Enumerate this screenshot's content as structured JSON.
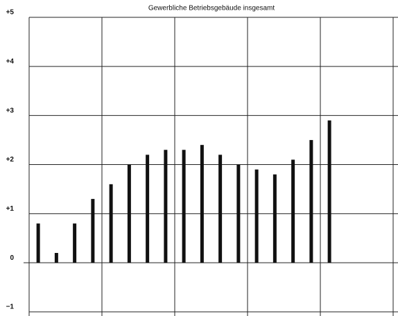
{
  "chart_data": {
    "type": "bar",
    "title": "Gewerbliche Betriebsgebäude insgesamt",
    "categories": [
      null,
      null,
      null,
      null,
      null,
      null,
      null,
      null,
      null,
      null,
      null,
      null,
      null,
      null,
      null,
      null,
      null,
      null,
      null,
      null
    ],
    "values": [
      0.8,
      0.2,
      0.8,
      1.3,
      1.6,
      2.0,
      2.2,
      2.3,
      2.3,
      2.4,
      2.2,
      2.0,
      1.9,
      1.8,
      2.1,
      2.5,
      2.9,
      null,
      null,
      null
    ],
    "color": "#111111",
    "ylim": [
      -1,
      5
    ],
    "yticks": [
      {
        "value": 5,
        "label": "+5"
      },
      {
        "value": 4,
        "label": "+4"
      },
      {
        "value": 3,
        "label": "+3"
      },
      {
        "value": 2,
        "label": "+2"
      },
      {
        "value": 1,
        "label": "+1"
      },
      0,
      {
        "value": -1,
        "label": "−1"
      }
    ],
    "grid": true
  }
}
